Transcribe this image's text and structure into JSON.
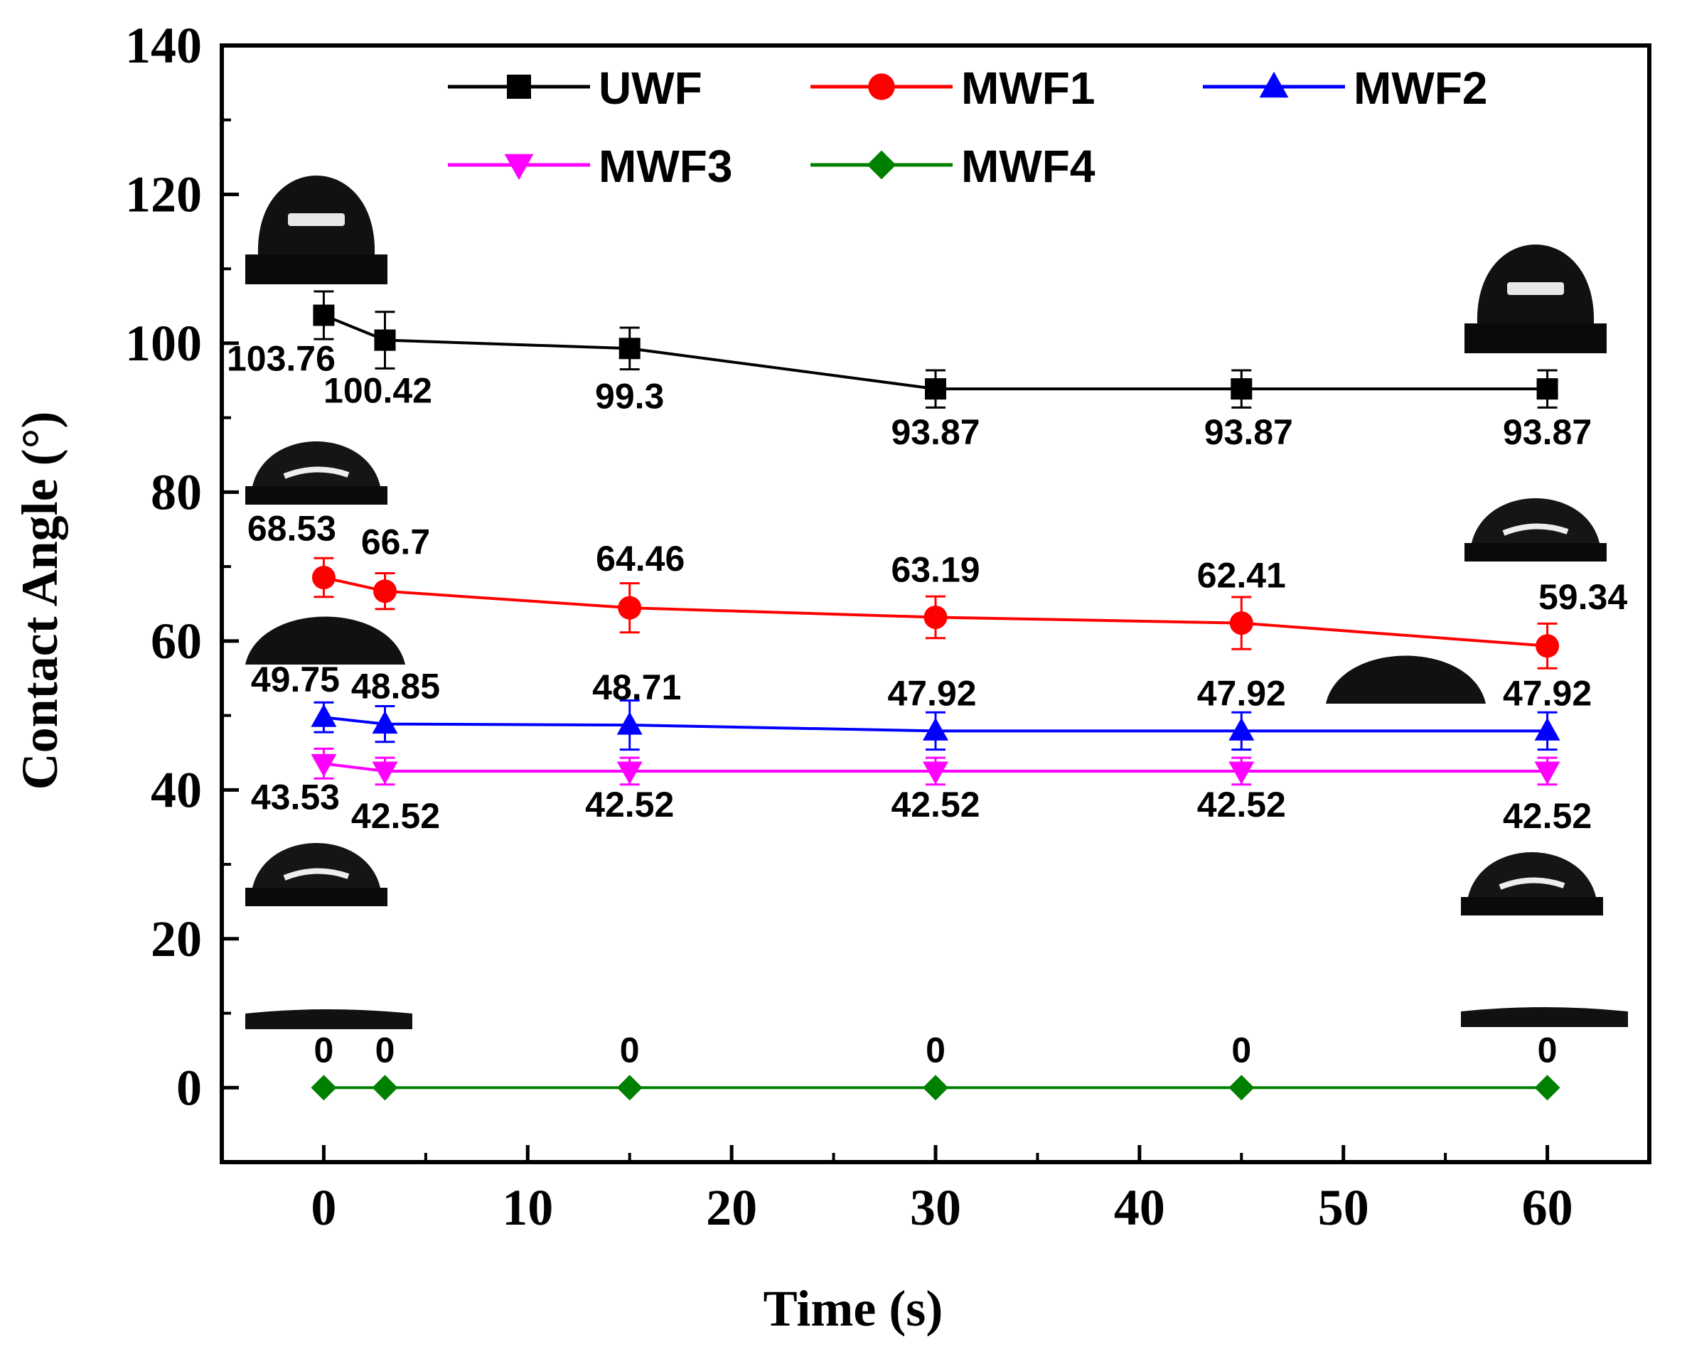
{
  "chart_data": {
    "type": "line",
    "title": "",
    "xlabel": "Time (s)",
    "ylabel": "Contact Angle (°)",
    "xlim": [
      -5,
      65
    ],
    "ylim": [
      -10,
      140
    ],
    "xticks": [
      0,
      10,
      20,
      30,
      40,
      50,
      60
    ],
    "yticks": [
      0,
      20,
      40,
      60,
      80,
      100,
      120,
      140
    ],
    "x": [
      0,
      3,
      15,
      30,
      45,
      60
    ],
    "legend_position": "top",
    "series": [
      {
        "name": "UWF",
        "color": "#000000",
        "marker": "square",
        "values": [
          103.76,
          100.42,
          99.3,
          93.87,
          93.87,
          93.87
        ],
        "labels": [
          "103.76",
          "100.42",
          "99.3",
          "93.87",
          "93.87",
          "93.87"
        ],
        "errors": [
          3.2,
          3.8,
          2.8,
          2.5,
          2.5,
          2.5
        ]
      },
      {
        "name": "MWF1",
        "color": "#ff0000",
        "marker": "circle",
        "values": [
          68.53,
          66.7,
          64.46,
          63.19,
          62.41,
          59.34
        ],
        "labels": [
          "68.53",
          "66.7",
          "64.46",
          "63.19",
          "62.41",
          "59.34"
        ],
        "errors": [
          2.6,
          2.4,
          3.3,
          2.8,
          3.5,
          3.0
        ]
      },
      {
        "name": "MWF2",
        "color": "#0000ff",
        "marker": "triangle-up",
        "values": [
          49.75,
          48.85,
          48.71,
          47.92,
          47.92,
          47.92
        ],
        "labels": [
          "49.75",
          "48.85",
          "48.71",
          "47.92",
          "47.92",
          "47.92"
        ],
        "errors": [
          2.0,
          2.4,
          3.3,
          2.5,
          2.5,
          2.5
        ]
      },
      {
        "name": "MWF3",
        "color": "#ff00ff",
        "marker": "triangle-down",
        "values": [
          43.53,
          42.52,
          42.52,
          42.52,
          42.52,
          42.52
        ],
        "labels": [
          "43.53",
          "42.52",
          "42.52",
          "42.52",
          "42.52",
          "42.52"
        ],
        "errors": [
          2.0,
          1.8,
          1.8,
          1.8,
          1.8,
          1.8
        ]
      },
      {
        "name": "MWF4",
        "color": "#008000",
        "marker": "diamond",
        "values": [
          0,
          0,
          0,
          0,
          0,
          0
        ],
        "labels": [
          "0",
          "0",
          "0",
          "0",
          "0",
          "0"
        ],
        "errors": [
          0,
          0,
          0,
          0,
          0,
          0
        ]
      }
    ],
    "droplet_images": [
      {
        "series": "UWF",
        "time": "0",
        "type": "high"
      },
      {
        "series": "UWF",
        "time": "60",
        "type": "high"
      },
      {
        "series": "MWF1",
        "time": "0",
        "type": "medium"
      },
      {
        "series": "MWF1",
        "time": "60",
        "type": "medium"
      },
      {
        "series": "MWF2",
        "time": "0",
        "type": "wide"
      },
      {
        "series": "MWF2",
        "time": "60",
        "type": "wide"
      },
      {
        "series": "MWF3",
        "time": "0",
        "type": "medium"
      },
      {
        "series": "MWF3",
        "time": "60",
        "type": "medium"
      },
      {
        "series": "MWF4",
        "time": "0",
        "type": "flat"
      },
      {
        "series": "MWF4",
        "time": "60",
        "type": "flat"
      }
    ]
  }
}
